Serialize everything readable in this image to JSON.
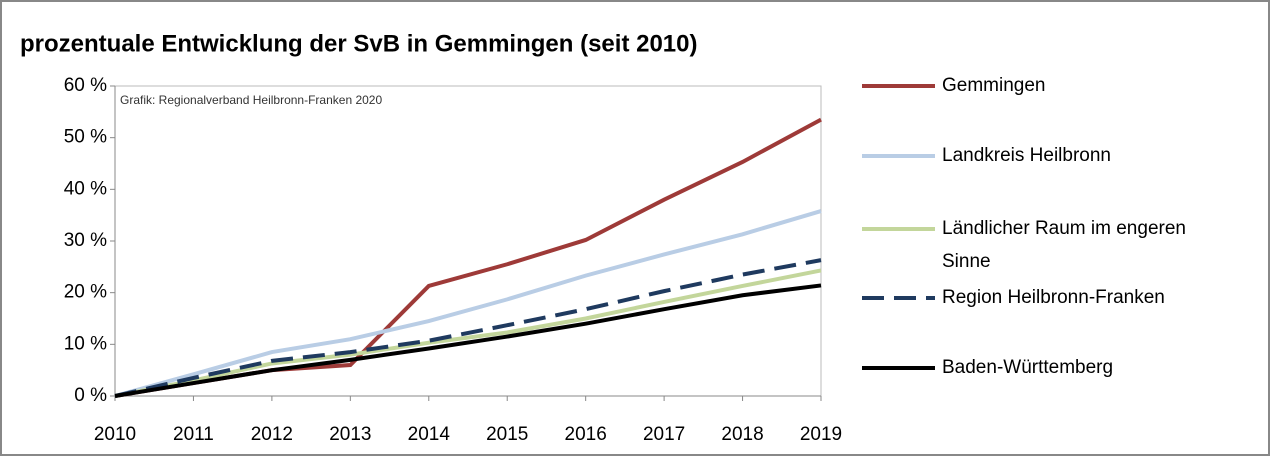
{
  "chart_data": {
    "type": "line",
    "title": "prozentuale Entwicklung der SvB in Gemmingen (seit 2010)",
    "annotation": "Grafik: Regionalverband Heilbronn-Franken 2020",
    "categories": [
      "2010",
      "2011",
      "2012",
      "2013",
      "2014",
      "2015",
      "2016",
      "2017",
      "2018",
      "2019"
    ],
    "series": [
      {
        "name": "Gemmingen",
        "color": "#9e3a38",
        "values": [
          0,
          2.5,
          5,
          6,
          21.3,
          25.5,
          30.2,
          38,
          45.3,
          53.5
        ]
      },
      {
        "name": "Landkreis Heilbronn",
        "color": "#b9cde5",
        "values": [
          0,
          4.2,
          8.5,
          11,
          14.5,
          18.7,
          23.3,
          27.4,
          31.3,
          35.8
        ]
      },
      {
        "name": "Ländlicher Raum im engeren Sinne",
        "color": "#c3d69b",
        "values": [
          0,
          3,
          6.3,
          8,
          10.3,
          12.3,
          15,
          18.2,
          21.3,
          24.3
        ]
      },
      {
        "name": "Region Heilbronn-Franken",
        "color": "#1f3a5f",
        "dashed": true,
        "values": [
          0,
          3.5,
          6.8,
          8.5,
          10.7,
          13.7,
          16.8,
          20.3,
          23.5,
          26.3
        ]
      },
      {
        "name": "Baden-Württemberg",
        "color": "#000000",
        "values": [
          0,
          2.5,
          5,
          7,
          9.2,
          11.5,
          14,
          16.8,
          19.5,
          21.4
        ]
      }
    ],
    "ylim": [
      0,
      60
    ],
    "yticks": [
      {
        "value": 0,
        "label": "0 %"
      },
      {
        "value": 10,
        "label": "10 %"
      },
      {
        "value": 20,
        "label": "20 %"
      },
      {
        "value": 30,
        "label": "30 %"
      },
      {
        "value": 40,
        "label": "40 %"
      },
      {
        "value": 50,
        "label": "50 %"
      },
      {
        "value": 60,
        "label": "60 %"
      }
    ],
    "grid": false,
    "legend": "right"
  }
}
